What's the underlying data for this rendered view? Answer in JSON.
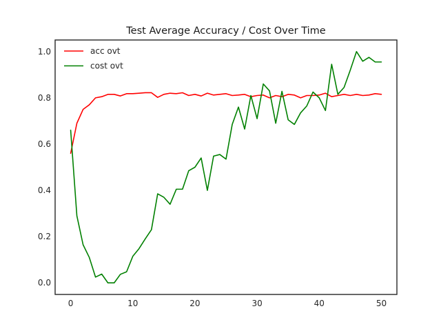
{
  "chart_data": {
    "type": "line",
    "title": "Test Average Accuracy / Cost Over Time",
    "xlabel": "",
    "ylabel": "",
    "xlim": [
      -2.5,
      52.5
    ],
    "ylim": [
      -0.05,
      1.05
    ],
    "x_ticks": [
      0,
      10,
      20,
      30,
      40,
      50
    ],
    "x_tick_labels": [
      "0",
      "10",
      "20",
      "30",
      "40",
      "50"
    ],
    "y_ticks": [
      0.0,
      0.2,
      0.4,
      0.6,
      0.8,
      1.0
    ],
    "y_tick_labels": [
      "0.0",
      "0.2",
      "0.4",
      "0.6",
      "0.8",
      "1.0"
    ],
    "grid": false,
    "legend_position": "upper-left",
    "x": [
      0,
      1,
      2,
      3,
      4,
      5,
      6,
      7,
      8,
      9,
      10,
      11,
      12,
      13,
      14,
      15,
      16,
      17,
      18,
      19,
      20,
      21,
      22,
      23,
      24,
      25,
      26,
      27,
      28,
      29,
      30,
      31,
      32,
      33,
      34,
      35,
      36,
      37,
      38,
      39,
      40,
      41,
      42,
      43,
      44,
      45,
      46,
      47,
      48,
      49,
      50
    ],
    "series": [
      {
        "name": "acc ovt",
        "color": "#ff0000",
        "values": [
          0.56,
          0.69,
          0.75,
          0.77,
          0.8,
          0.805,
          0.815,
          0.815,
          0.808,
          0.818,
          0.818,
          0.82,
          0.822,
          0.822,
          0.802,
          0.815,
          0.82,
          0.818,
          0.822,
          0.81,
          0.815,
          0.808,
          0.82,
          0.812,
          0.815,
          0.818,
          0.81,
          0.812,
          0.815,
          0.805,
          0.81,
          0.812,
          0.8,
          0.81,
          0.805,
          0.815,
          0.812,
          0.8,
          0.81,
          0.81,
          0.812,
          0.82,
          0.805,
          0.81,
          0.815,
          0.81,
          0.815,
          0.81,
          0.812,
          0.818,
          0.815
        ]
      },
      {
        "name": "cost ovt",
        "color": "#008000",
        "values": [
          0.66,
          0.29,
          0.165,
          0.11,
          0.025,
          0.038,
          0.0,
          0.0,
          0.037,
          0.048,
          0.115,
          0.148,
          0.19,
          0.23,
          0.385,
          0.37,
          0.34,
          0.405,
          0.405,
          0.485,
          0.5,
          0.54,
          0.4,
          0.548,
          0.555,
          0.535,
          0.685,
          0.76,
          0.665,
          0.81,
          0.71,
          0.86,
          0.83,
          0.69,
          0.828,
          0.705,
          0.685,
          0.735,
          0.765,
          0.825,
          0.8,
          0.745,
          0.945,
          0.815,
          0.845,
          0.92,
          1.0,
          0.958,
          0.975,
          0.955,
          0.955
        ]
      }
    ]
  }
}
